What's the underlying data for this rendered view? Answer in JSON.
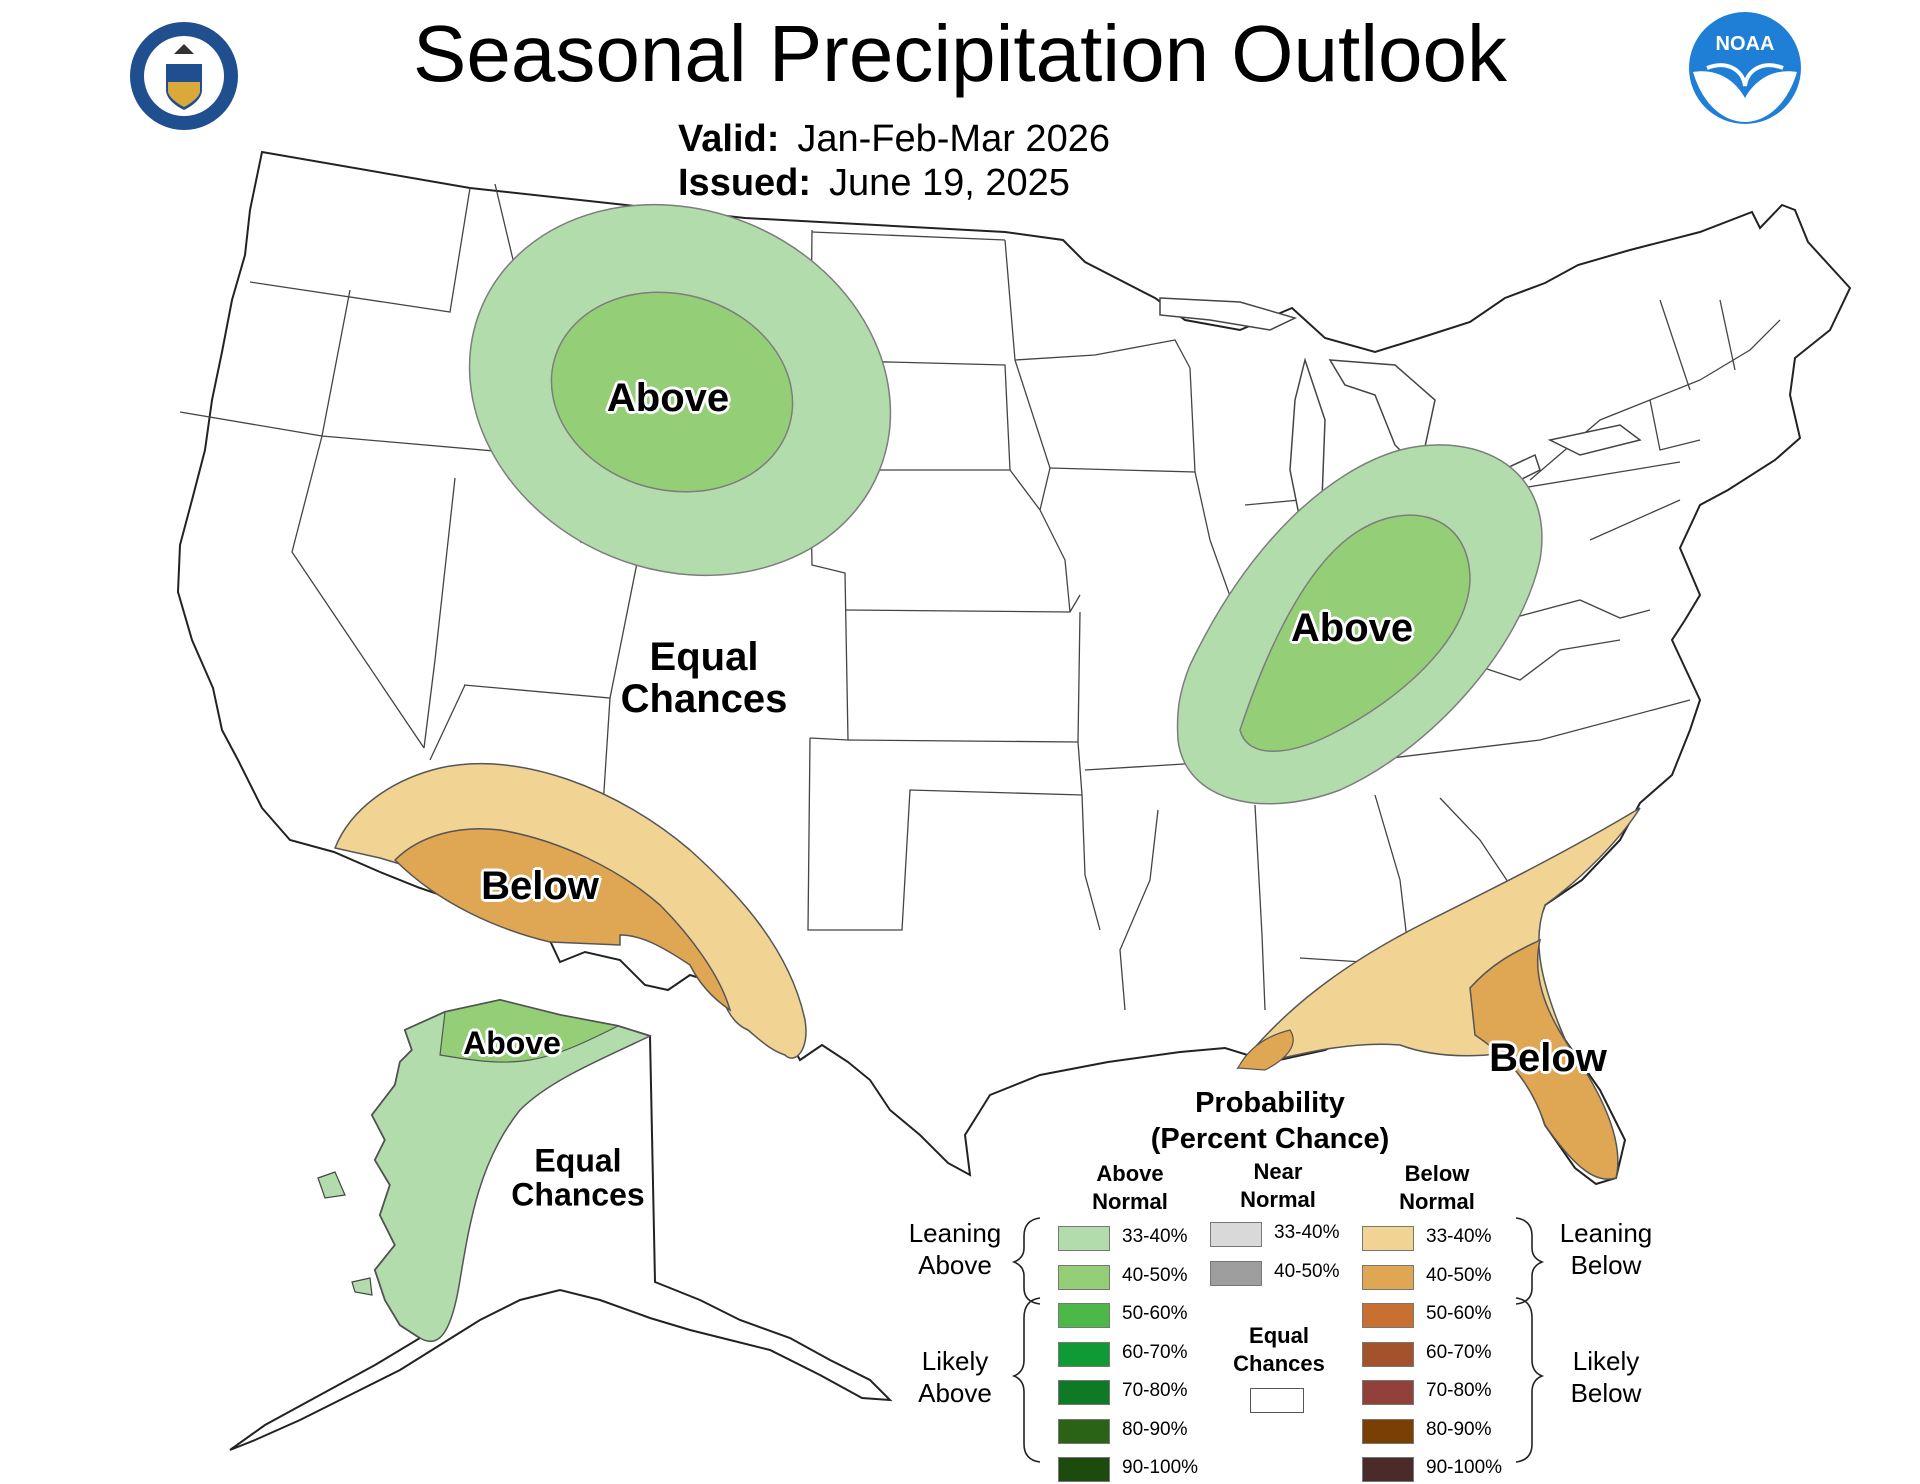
{
  "header": {
    "title": "Seasonal Precipitation Outlook",
    "valid_label": "Valid:",
    "valid_value": "Jan-Feb-Mar 2026",
    "issued_label": "Issued:",
    "issued_value": "June 19, 2025"
  },
  "logos": {
    "left": "us-department-of-commerce-seal",
    "right": "noaa-logo",
    "noaa_text": "NOAA"
  },
  "map_labels": {
    "north_plains": "Above",
    "ohio_valley": "Above",
    "great_basin": "Equal\nChances",
    "southwest": "Below",
    "florida": "Below",
    "alaska_north": "Above",
    "alaska_main": "Equal\nChances"
  },
  "categories": {
    "above_33_40": "#b3dcad",
    "above_40_50": "#94cf78",
    "below_33_40": "#f1d493",
    "below_40_50": "#dfa653",
    "equal": "#ffffff"
  },
  "legend": {
    "title_line1": "Probability",
    "title_line2": "(Percent Chance)",
    "above_header": "Above\nNormal",
    "near_header": "Near\nNormal",
    "below_header": "Below\nNormal",
    "leaning_above": "Leaning\nAbove",
    "likely_above": "Likely\nAbove",
    "leaning_below": "Leaning\nBelow",
    "likely_below": "Likely\nBelow",
    "equal_chances": "Equal\nChances",
    "above": [
      {
        "label": "33-40%",
        "color": "#b3dcad"
      },
      {
        "label": "40-50%",
        "color": "#94cf78"
      },
      {
        "label": "50-60%",
        "color": "#4cb848"
      },
      {
        "label": "60-70%",
        "color": "#109a36"
      },
      {
        "label": "70-80%",
        "color": "#0e7a25"
      },
      {
        "label": "80-90%",
        "color": "#2a6315"
      },
      {
        "label": "90-100%",
        "color": "#1d4b0d"
      }
    ],
    "near": [
      {
        "label": "33-40%",
        "color": "#d9d9d9"
      },
      {
        "label": "40-50%",
        "color": "#9e9e9e"
      }
    ],
    "below": [
      {
        "label": "33-40%",
        "color": "#f1d493"
      },
      {
        "label": "40-50%",
        "color": "#dfa653"
      },
      {
        "label": "50-60%",
        "color": "#c8702f"
      },
      {
        "label": "60-70%",
        "color": "#a3522b"
      },
      {
        "label": "70-80%",
        "color": "#91413a"
      },
      {
        "label": "80-90%",
        "color": "#7a3f03"
      },
      {
        "label": "90-100%",
        "color": "#4b2a2a"
      }
    ]
  }
}
